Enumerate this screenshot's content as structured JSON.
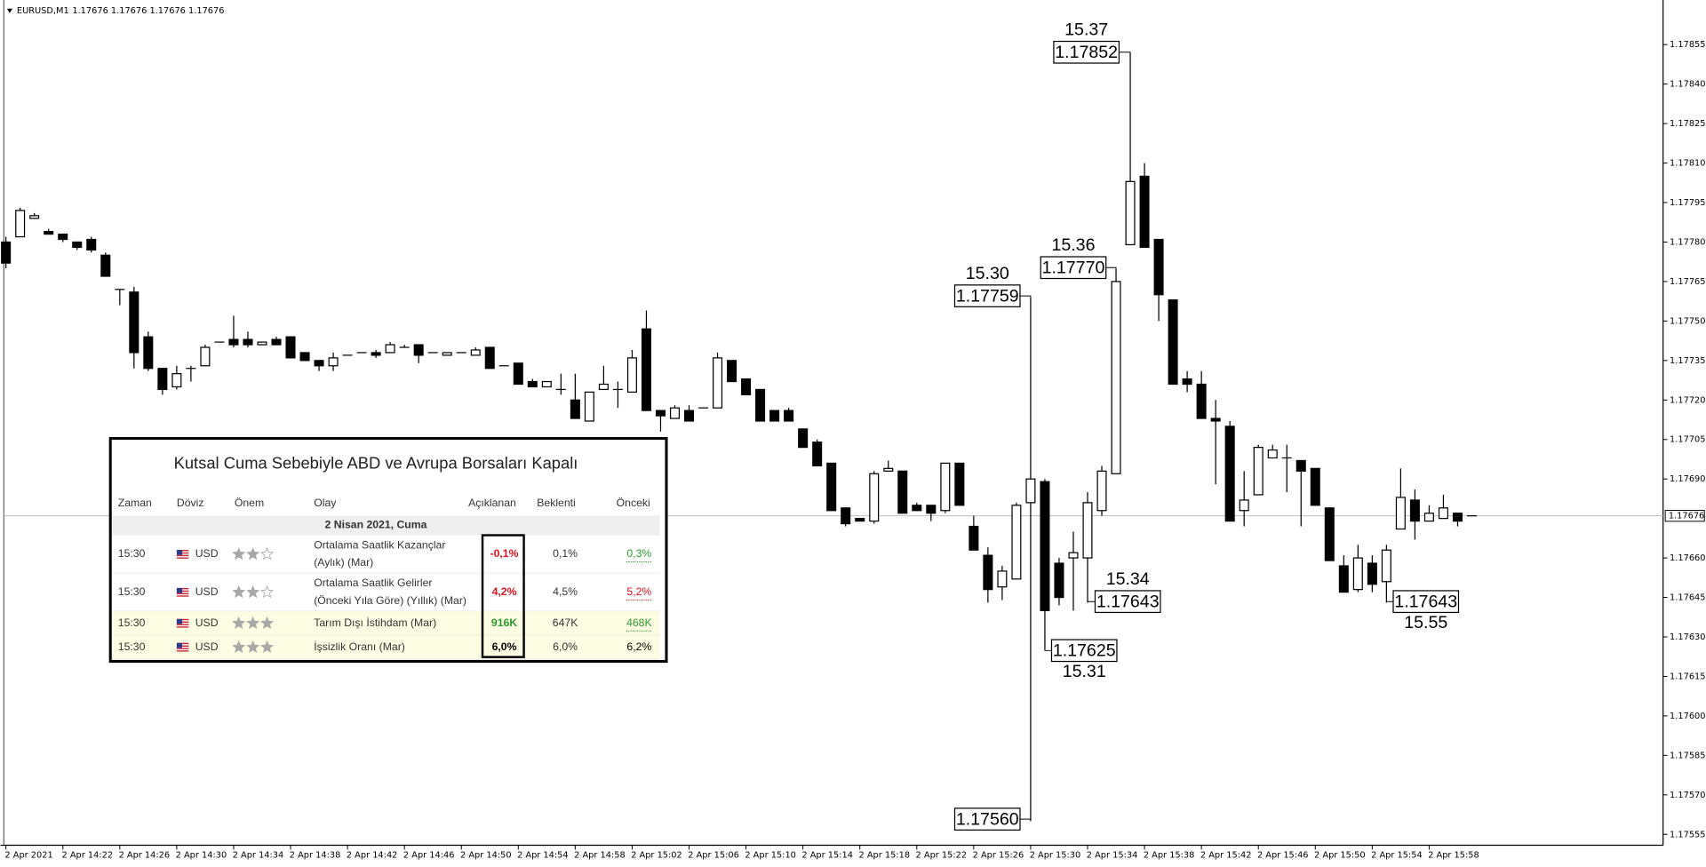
{
  "chart_data": {
    "type": "candlestick",
    "title": "EURUSD,M1",
    "ohlc": "1.17676 1.17676 1.17676 1.17676",
    "categories": [
      "2 Apr 2021",
      null,
      null,
      null,
      "2 Apr 14:22",
      null,
      null,
      null,
      "2 Apr 14:26",
      null,
      null,
      null,
      "2 Apr 14:30",
      null,
      null,
      null,
      "2 Apr 14:34",
      null,
      null,
      null,
      "2 Apr 14:38",
      null,
      null,
      null,
      "2 Apr 14:42",
      null,
      null,
      null,
      "2 Apr 14:46",
      null,
      null,
      null,
      "2 Apr 14:50",
      null,
      null,
      null,
      "2 Apr 14:54",
      null,
      null,
      null,
      "2 Apr 14:58",
      null,
      null,
      null,
      "2 Apr 15:02",
      null,
      null,
      null,
      "2 Apr 15:06",
      null,
      null,
      null,
      "2 Apr 15:10",
      null,
      null,
      null,
      "2 Apr 15:14",
      null,
      null,
      null,
      "2 Apr 15:18",
      null,
      null,
      null,
      "2 Apr 15:22",
      null,
      null,
      null,
      "2 Apr 15:26",
      null,
      null,
      null,
      "2 Apr 15:30",
      null,
      null,
      null,
      "2 Apr 15:34",
      null,
      null,
      null,
      "2 Apr 15:38",
      null,
      null,
      null,
      "2 Apr 15:42",
      null,
      null,
      null,
      "2 Apr 15:46",
      null,
      null,
      null,
      "2 Apr 15:50",
      null,
      null,
      null,
      "2 Apr 15:54",
      null,
      null,
      null,
      "2 Apr 15:58",
      null,
      null,
      null
    ],
    "open": [
      1.1778,
      1.17782,
      1.17789,
      1.17784,
      1.17783,
      1.1778,
      1.17781,
      1.17775,
      1.17762,
      1.17761,
      1.17744,
      1.17732,
      1.17725,
      1.17732,
      1.17733,
      1.17742,
      1.17743,
      1.17743,
      1.17741,
      1.17743,
      1.17744,
      1.17738,
      1.17735,
      1.17733,
      1.17737,
      1.17738,
      1.17738,
      1.17738,
      1.1774,
      1.17741,
      1.17738,
      1.17737,
      1.17738,
      1.17737,
      1.1774,
      1.17733,
      1.17734,
      1.17727,
      1.17725,
      1.17724,
      1.1772,
      1.17712,
      1.17724,
      1.17724,
      1.17723,
      1.17747,
      1.17716,
      1.17713,
      1.17716,
      1.17717,
      1.17717,
      1.17735,
      1.17728,
      1.17724,
      1.17716,
      1.17716,
      1.17709,
      1.17704,
      1.17696,
      1.17679,
      1.17675,
      1.17674,
      1.17693,
      1.17693,
      1.1768,
      1.1768,
      1.17678,
      1.17696,
      1.17672,
      1.17661,
      1.17649,
      1.17652,
      1.17681,
      1.17689,
      1.17658,
      1.1766,
      1.1766,
      1.17678,
      1.17692,
      1.17779,
      1.17805,
      1.17781,
      1.17758,
      1.17728,
      1.17726,
      1.17713,
      1.1771,
      1.17678,
      1.17684,
      1.17698,
      1.17698,
      1.17697,
      1.17694,
      1.17679,
      1.17657,
      1.17648,
      1.17658,
      1.17651,
      1.17671,
      1.17682,
      1.17674,
      1.17675,
      1.17677,
      1.17676
    ],
    "high": [
      1.17782,
      1.17793,
      1.17791,
      1.17785,
      1.17783,
      1.1778,
      1.17782,
      1.17776,
      1.17762,
      1.17763,
      1.17746,
      1.17732,
      1.17733,
      1.17733,
      1.17741,
      1.17742,
      1.17752,
      1.17746,
      1.17742,
      1.17744,
      1.17744,
      1.17738,
      1.17735,
      1.17738,
      1.17737,
      1.17738,
      1.17739,
      1.17742,
      1.17741,
      1.17741,
      1.17738,
      1.17738,
      1.17738,
      1.1774,
      1.1774,
      1.17733,
      1.17734,
      1.17728,
      1.17727,
      1.1773,
      1.1773,
      1.17723,
      1.17733,
      1.17727,
      1.17739,
      1.17754,
      1.17716,
      1.17718,
      1.17718,
      1.17717,
      1.17738,
      1.17735,
      1.17728,
      1.17724,
      1.17716,
      1.17717,
      1.17709,
      1.17705,
      1.17696,
      1.17679,
      1.17675,
      1.17693,
      1.17697,
      1.17693,
      1.17681,
      1.1768,
      1.17696,
      1.17696,
      1.17676,
      1.17664,
      1.17657,
      1.17681,
      1.17759,
      1.1769,
      1.1766,
      1.1767,
      1.17685,
      1.17695,
      1.1777,
      1.17852,
      1.1781,
      1.17781,
      1.17758,
      1.17731,
      1.17731,
      1.1772,
      1.17712,
      1.17693,
      1.17703,
      1.17703,
      1.17703,
      1.17697,
      1.17694,
      1.17679,
      1.17661,
      1.17665,
      1.17661,
      1.17665,
      1.17694,
      1.17686,
      1.1768,
      1.17684,
      1.17677,
      1.17676
    ],
    "low": [
      1.1777,
      1.17782,
      1.17789,
      1.17783,
      1.1778,
      1.17777,
      1.17776,
      1.17767,
      1.17756,
      1.17732,
      1.17731,
      1.17722,
      1.17724,
      1.17727,
      1.17733,
      1.17742,
      1.1774,
      1.1774,
      1.17741,
      1.17741,
      1.17736,
      1.17735,
      1.17731,
      1.17731,
      1.17737,
      1.17738,
      1.17736,
      1.17738,
      1.1774,
      1.17734,
      1.17738,
      1.17737,
      1.17738,
      1.17737,
      1.17732,
      1.17733,
      1.17726,
      1.17725,
      1.17725,
      1.17722,
      1.17713,
      1.17712,
      1.17724,
      1.17717,
      1.17723,
      1.17716,
      1.17708,
      1.17713,
      1.17712,
      1.17717,
      1.17717,
      1.17727,
      1.17722,
      1.17712,
      1.17712,
      1.17712,
      1.17702,
      1.17695,
      1.17678,
      1.17672,
      1.17674,
      1.17673,
      1.17693,
      1.17677,
      1.17678,
      1.17674,
      1.17677,
      1.1768,
      1.17663,
      1.17643,
      1.17644,
      1.17652,
      1.1756,
      1.17625,
      1.17642,
      1.1764,
      1.17643,
      1.17676,
      1.17692,
      1.17779,
      1.17778,
      1.1775,
      1.17726,
      1.17723,
      1.17713,
      1.17688,
      1.17674,
      1.17672,
      1.17684,
      1.17698,
      1.17685,
      1.17672,
      1.1768,
      1.17659,
      1.17647,
      1.17647,
      1.17647,
      1.17643,
      1.17671,
      1.17667,
      1.17674,
      1.17675,
      1.17672,
      1.17676
    ],
    "close": [
      1.17772,
      1.17792,
      1.1779,
      1.17783,
      1.17781,
      1.17778,
      1.17777,
      1.17767,
      1.17762,
      1.17738,
      1.17732,
      1.17724,
      1.1773,
      1.17732,
      1.1774,
      1.17742,
      1.17741,
      1.17741,
      1.17742,
      1.17741,
      1.17736,
      1.17735,
      1.17733,
      1.17736,
      1.17737,
      1.17738,
      1.17737,
      1.17741,
      1.1774,
      1.17737,
      1.17738,
      1.17738,
      1.17738,
      1.17739,
      1.17732,
      1.17733,
      1.17726,
      1.17725,
      1.17727,
      1.17724,
      1.17713,
      1.17723,
      1.17726,
      1.17724,
      1.17736,
      1.17716,
      1.17714,
      1.17717,
      1.17712,
      1.17717,
      1.17736,
      1.17727,
      1.17722,
      1.17712,
      1.17712,
      1.17712,
      1.17702,
      1.17695,
      1.17678,
      1.17673,
      1.17674,
      1.17692,
      1.17694,
      1.17677,
      1.17678,
      1.17677,
      1.17696,
      1.1768,
      1.17663,
      1.17648,
      1.17655,
      1.1768,
      1.1769,
      1.1764,
      1.17645,
      1.17662,
      1.17681,
      1.17693,
      1.17765,
      1.17803,
      1.17778,
      1.1776,
      1.17726,
      1.17726,
      1.17713,
      1.17712,
      1.17674,
      1.17682,
      1.17702,
      1.17701,
      1.17698,
      1.17693,
      1.1768,
      1.17659,
      1.17647,
      1.1766,
      1.1765,
      1.17663,
      1.17683,
      1.17674,
      1.17677,
      1.17679,
      1.17674,
      1.17676
    ],
    "up_color": "#ffffff",
    "down_color": "#000000",
    "ylim": [
      1.1755,
      1.1787
    ],
    "yticks": [
      1.17855,
      {
        "value": 1.1784,
        "label": "1.17840"
      },
      1.17825,
      {
        "value": 1.1781,
        "label": "1.17810"
      },
      1.17795,
      {
        "value": 1.1778,
        "label": "1.17780"
      },
      1.17765,
      {
        "value": 1.1775,
        "label": "1.17750"
      },
      1.17735,
      {
        "value": 1.1772,
        "label": "1.17720"
      },
      1.17705,
      {
        "value": 1.1769,
        "label": "1.17690"
      },
      {
        "value": 1.1766,
        "label": "1.17660"
      },
      1.17645,
      {
        "value": 1.1763,
        "label": "1.17630"
      },
      1.17615,
      {
        "value": 1.176,
        "label": "1.17600"
      },
      1.17585,
      {
        "value": 1.1757,
        "label": "1.17570"
      },
      1.17555
    ],
    "current_price": 1.17676,
    "grid": false,
    "annotations": [
      {
        "time": "15.37",
        "price": "1.17852"
      },
      {
        "time": "15.36",
        "price": "1.17770"
      },
      {
        "time": "15.30",
        "price": "1.17759"
      },
      {
        "price": "1.17560"
      },
      {
        "time": "15.31",
        "price": "1.17625"
      },
      {
        "time": "15.34",
        "price": "1.17643"
      },
      {
        "time": "15.55",
        "price": "1.17643"
      }
    ]
  },
  "news_table": {
    "title": "Kutsal Cuma Sebebiyle ABD ve Avrupa Borsaları Kapalı",
    "columns": [
      "Zaman",
      "Döviz",
      "Önem",
      "Olay",
      "Açıklanan",
      "Beklenti",
      "Önceki"
    ],
    "date": "2 Nisan 2021, Cuma",
    "rows": [
      {
        "time": "15:30",
        "currency": "USD",
        "importance": 2,
        "event": [
          "Ortalama Saatlik Kazançlar",
          "(Aylık) (Mar)"
        ],
        "actual": "-0,1%",
        "actual_color": "#e0101e",
        "forecast": "0,1%",
        "previous": "0,3%",
        "previous_color": "#2e9a2e"
      },
      {
        "time": "15:30",
        "currency": "USD",
        "importance": 2,
        "event": [
          "Ortalama Saatlik Gelirler",
          "(Önceki Yıla Göre) (Yıllık) (Mar)"
        ],
        "actual": "4,2%",
        "actual_color": "#e0101e",
        "forecast": "4,5%",
        "previous": "5,2%",
        "previous_color": "#e0101e"
      },
      {
        "time": "15:30",
        "currency": "USD",
        "importance": 3,
        "event": [
          "Tarım Dışı İstihdam (Mar)"
        ],
        "actual": "916K",
        "actual_color": "#2e9a2e",
        "forecast": "647K",
        "previous": "468K",
        "previous_color": "#2e9a2e"
      },
      {
        "time": "15:30",
        "currency": "USD",
        "importance": 3,
        "event": [
          "İşsizlik Oranı (Mar)"
        ],
        "actual": "6,0%",
        "actual_color": "#000000",
        "forecast": "6,0%",
        "previous": "6,2%",
        "previous_color": "#000000"
      }
    ]
  }
}
